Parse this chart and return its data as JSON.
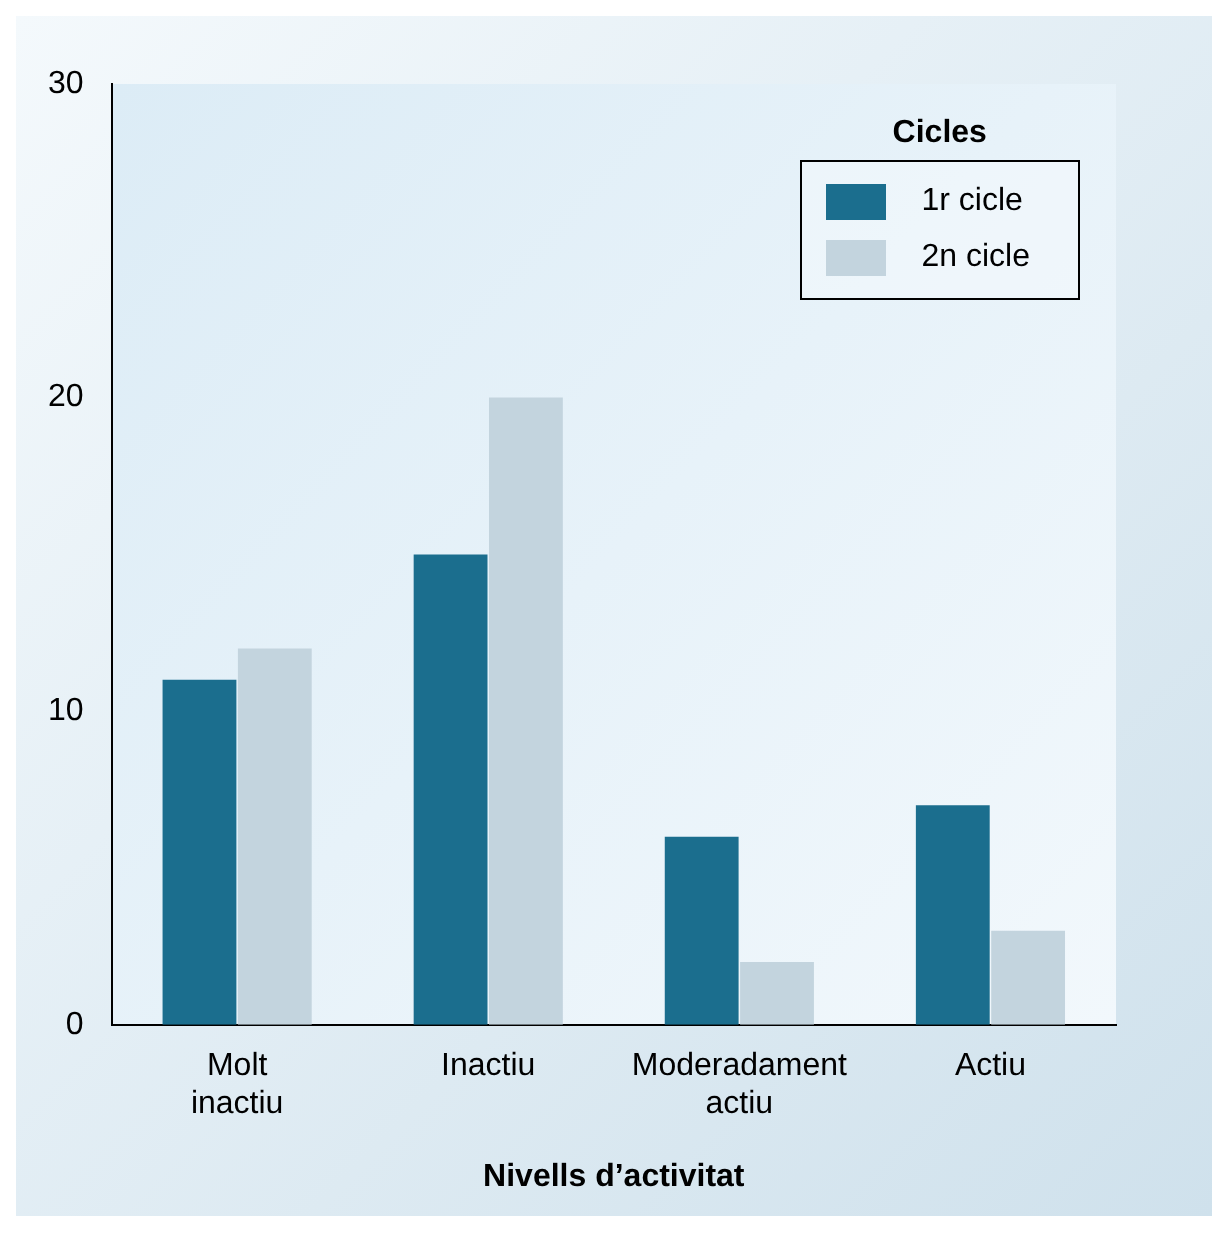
{
  "chart_data": {
    "type": "bar",
    "xlabel": "Nivells d’activitat",
    "legend_title": "Cicles",
    "legend": "top right",
    "grid": false,
    "categories": [
      "Molt inactiu",
      "Inactiu",
      "Moderadament actiu",
      "Actiu"
    ],
    "series": [
      {
        "name": "1r cicle",
        "color": "#1b6e8e",
        "values": [
          11,
          15,
          6,
          7
        ]
      },
      {
        "name": "2n cicle",
        "color": "#c3d4de",
        "values": [
          12,
          20,
          2,
          3
        ]
      }
    ],
    "ylim": [
      0,
      30
    ],
    "yticks": [
      0,
      10,
      20,
      30
    ]
  }
}
